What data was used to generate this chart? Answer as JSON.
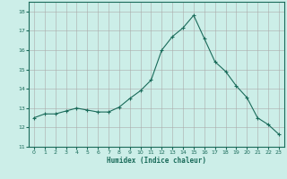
{
  "x": [
    0,
    1,
    2,
    3,
    4,
    5,
    6,
    7,
    8,
    9,
    10,
    11,
    12,
    13,
    14,
    15,
    16,
    17,
    18,
    19,
    20,
    21,
    22,
    23
  ],
  "y": [
    12.5,
    12.7,
    12.7,
    12.85,
    13.0,
    12.9,
    12.8,
    12.8,
    13.05,
    13.5,
    13.9,
    14.45,
    16.0,
    16.7,
    17.15,
    17.8,
    16.6,
    15.4,
    14.9,
    14.15,
    13.55,
    12.5,
    12.15,
    11.65
  ],
  "xlim": [
    -0.5,
    23.5
  ],
  "ylim": [
    11,
    18.5
  ],
  "yticks": [
    11,
    12,
    13,
    14,
    15,
    16,
    17,
    18
  ],
  "xticks": [
    0,
    1,
    2,
    3,
    4,
    5,
    6,
    7,
    8,
    9,
    10,
    11,
    12,
    13,
    14,
    15,
    16,
    17,
    18,
    19,
    20,
    21,
    22,
    23
  ],
  "xlabel": "Humidex (Indice chaleur)",
  "line_color": "#1a6b5a",
  "marker": "+",
  "bg_color": "#cceee8",
  "grid_color_major": "#aaaaaa"
}
